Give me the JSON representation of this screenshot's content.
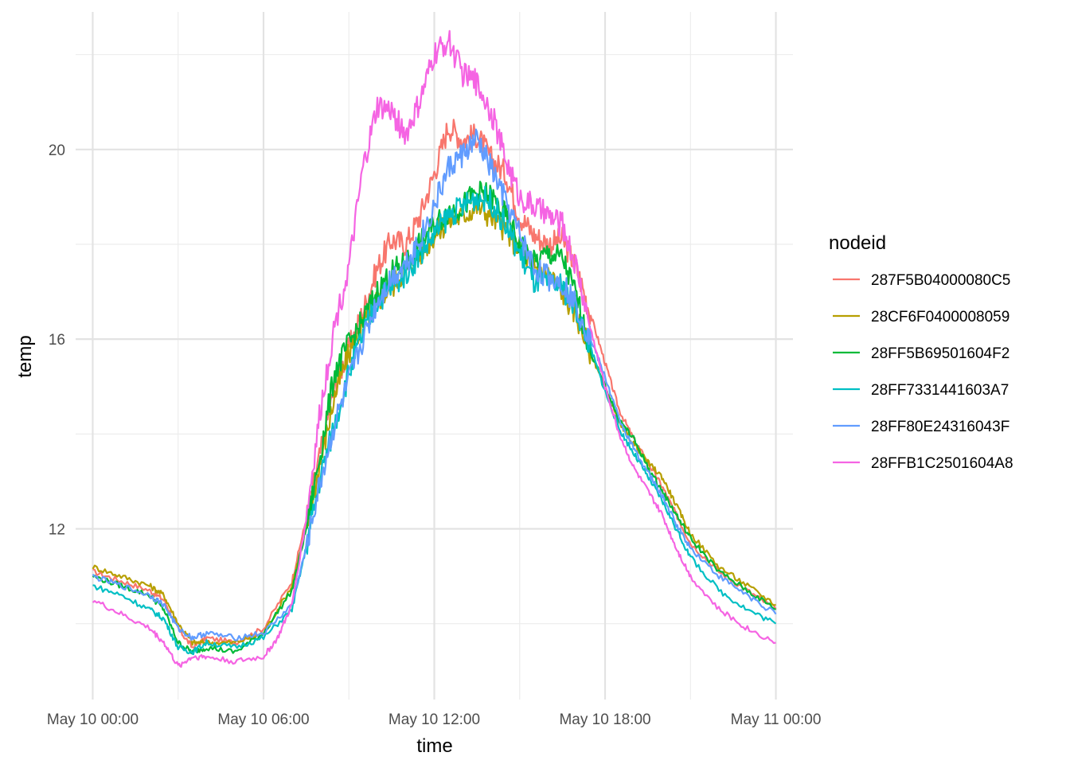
{
  "chart_data": {
    "type": "line",
    "xlabel": "time",
    "ylabel": "temp",
    "x_ticks": [
      "May 10 00:00",
      "May 10 06:00",
      "May 10 12:00",
      "May 10 18:00",
      "May 11 00:00"
    ],
    "x_range_hours": [
      -0.6,
      24.6
    ],
    "y_ticks": [
      12,
      16,
      20
    ],
    "ylim": [
      8.4,
      22.9
    ],
    "grid": true,
    "legend_title": "nodeid",
    "legend_position": "right",
    "series": [
      {
        "name": "287F5B04000080C5",
        "color": "#F8766D",
        "points": [
          [
            0,
            11.1
          ],
          [
            1,
            10.9
          ],
          [
            2,
            10.7
          ],
          [
            2.5,
            10.5
          ],
          [
            3,
            9.9
          ],
          [
            3.5,
            9.5
          ],
          [
            4,
            9.7
          ],
          [
            5,
            9.6
          ],
          [
            6,
            9.9
          ],
          [
            7,
            10.9
          ],
          [
            7.5,
            12.2
          ],
          [
            8,
            13.6
          ],
          [
            8.5,
            15.0
          ],
          [
            9,
            15.8
          ],
          [
            9.5,
            16.6
          ],
          [
            10,
            17.5
          ],
          [
            10.5,
            18.1
          ],
          [
            11,
            18.0
          ],
          [
            11.5,
            18.6
          ],
          [
            12,
            19.5
          ],
          [
            12.5,
            20.5
          ],
          [
            13,
            20.2
          ],
          [
            13.5,
            20.3
          ],
          [
            14,
            19.8
          ],
          [
            14.5,
            19.5
          ],
          [
            15,
            18.6
          ],
          [
            15.5,
            18.2
          ],
          [
            16,
            18.0
          ],
          [
            16.5,
            18.1
          ],
          [
            17,
            17.5
          ],
          [
            17.5,
            16.5
          ],
          [
            18,
            15.5
          ],
          [
            18.5,
            14.5
          ],
          [
            19,
            13.9
          ],
          [
            19.5,
            13.4
          ],
          [
            20,
            12.9
          ],
          [
            20.5,
            12.3
          ],
          [
            21,
            11.7
          ],
          [
            22,
            11.1
          ],
          [
            23,
            10.7
          ],
          [
            24,
            10.3
          ]
        ]
      },
      {
        "name": "28CF6F0400008059",
        "color": "#B79F00",
        "points": [
          [
            0,
            11.2
          ],
          [
            1,
            11.0
          ],
          [
            2,
            10.8
          ],
          [
            2.5,
            10.6
          ],
          [
            3,
            10.0
          ],
          [
            3.5,
            9.6
          ],
          [
            4,
            9.6
          ],
          [
            5,
            9.6
          ],
          [
            6,
            9.8
          ],
          [
            7,
            10.8
          ],
          [
            7.5,
            12.0
          ],
          [
            8,
            13.4
          ],
          [
            8.5,
            14.8
          ],
          [
            9,
            15.7
          ],
          [
            9.5,
            16.3
          ],
          [
            10,
            16.8
          ],
          [
            10.5,
            17.1
          ],
          [
            11,
            17.5
          ],
          [
            11.5,
            17.8
          ],
          [
            12,
            18.2
          ],
          [
            12.5,
            18.5
          ],
          [
            13,
            18.6
          ],
          [
            13.5,
            18.8
          ],
          [
            14,
            18.6
          ],
          [
            14.5,
            18.3
          ],
          [
            15,
            17.9
          ],
          [
            15.5,
            17.5
          ],
          [
            16,
            17.4
          ],
          [
            16.5,
            17.0
          ],
          [
            17,
            16.5
          ],
          [
            17.5,
            15.7
          ],
          [
            18,
            15.0
          ],
          [
            18.5,
            14.2
          ],
          [
            19,
            13.8
          ],
          [
            19.5,
            13.4
          ],
          [
            20,
            13.1
          ],
          [
            20.5,
            12.5
          ],
          [
            21,
            11.9
          ],
          [
            22,
            11.2
          ],
          [
            23,
            10.8
          ],
          [
            24,
            10.4
          ]
        ]
      },
      {
        "name": "28FF5B69501604F2",
        "color": "#00BA38",
        "points": [
          [
            0,
            11.0
          ],
          [
            1,
            10.8
          ],
          [
            2,
            10.6
          ],
          [
            2.5,
            10.3
          ],
          [
            3,
            9.6
          ],
          [
            3.5,
            9.4
          ],
          [
            4,
            9.5
          ],
          [
            5,
            9.4
          ],
          [
            6,
            9.8
          ],
          [
            7,
            10.7
          ],
          [
            7.5,
            12.0
          ],
          [
            8,
            13.6
          ],
          [
            8.5,
            15.3
          ],
          [
            9,
            15.9
          ],
          [
            9.5,
            16.4
          ],
          [
            10,
            17.0
          ],
          [
            10.5,
            17.4
          ],
          [
            11,
            17.6
          ],
          [
            11.5,
            18.0
          ],
          [
            12,
            18.4
          ],
          [
            12.5,
            18.7
          ],
          [
            13,
            18.8
          ],
          [
            13.5,
            19.1
          ],
          [
            14,
            19.0
          ],
          [
            14.5,
            18.6
          ],
          [
            15,
            18.0
          ],
          [
            15.5,
            17.6
          ],
          [
            16,
            17.8
          ],
          [
            16.5,
            17.7
          ],
          [
            17,
            16.9
          ],
          [
            17.5,
            15.7
          ],
          [
            18,
            15.0
          ],
          [
            18.5,
            14.3
          ],
          [
            19,
            13.9
          ],
          [
            19.5,
            13.3
          ],
          [
            20,
            12.8
          ],
          [
            20.5,
            12.3
          ],
          [
            21,
            11.8
          ],
          [
            22,
            11.1
          ],
          [
            23,
            10.7
          ],
          [
            24,
            10.3
          ]
        ]
      },
      {
        "name": "28FF7331441603A7",
        "color": "#00BFC4",
        "points": [
          [
            0,
            10.8
          ],
          [
            1,
            10.6
          ],
          [
            2,
            10.3
          ],
          [
            2.5,
            10.1
          ],
          [
            3,
            9.5
          ],
          [
            3.5,
            9.4
          ],
          [
            4,
            9.6
          ],
          [
            5,
            9.5
          ],
          [
            6,
            9.7
          ],
          [
            7,
            10.3
          ],
          [
            7.5,
            11.6
          ],
          [
            8,
            13.1
          ],
          [
            8.5,
            14.2
          ],
          [
            9,
            15.3
          ],
          [
            9.5,
            16.1
          ],
          [
            10,
            16.8
          ],
          [
            10.5,
            17.1
          ],
          [
            11,
            17.4
          ],
          [
            11.5,
            17.8
          ],
          [
            12,
            18.2
          ],
          [
            12.5,
            18.6
          ],
          [
            13,
            18.8
          ],
          [
            13.5,
            19.0
          ],
          [
            14,
            18.9
          ],
          [
            14.5,
            18.4
          ],
          [
            15,
            17.8
          ],
          [
            15.5,
            17.2
          ],
          [
            16,
            17.2
          ],
          [
            16.5,
            17.1
          ],
          [
            17,
            16.6
          ],
          [
            17.5,
            15.8
          ],
          [
            18,
            14.9
          ],
          [
            18.5,
            14.1
          ],
          [
            19,
            13.6
          ],
          [
            19.5,
            13.1
          ],
          [
            20,
            12.6
          ],
          [
            20.5,
            12.0
          ],
          [
            21,
            11.4
          ],
          [
            22,
            10.7
          ],
          [
            23,
            10.3
          ],
          [
            24,
            10.0
          ]
        ]
      },
      {
        "name": "28FF80E24316043F",
        "color": "#619CFF",
        "points": [
          [
            0,
            11.0
          ],
          [
            1,
            10.8
          ],
          [
            2,
            10.6
          ],
          [
            2.5,
            10.4
          ],
          [
            3,
            9.9
          ],
          [
            3.5,
            9.7
          ],
          [
            4,
            9.8
          ],
          [
            5,
            9.7
          ],
          [
            6,
            9.8
          ],
          [
            7,
            10.4
          ],
          [
            7.5,
            11.6
          ],
          [
            8,
            13.0
          ],
          [
            8.5,
            14.2
          ],
          [
            9,
            15.1
          ],
          [
            9.5,
            16.0
          ],
          [
            10,
            16.8
          ],
          [
            10.5,
            17.3
          ],
          [
            11,
            17.6
          ],
          [
            11.5,
            18.1
          ],
          [
            12,
            18.8
          ],
          [
            12.5,
            19.6
          ],
          [
            13,
            19.9
          ],
          [
            13.5,
            20.2
          ],
          [
            14,
            19.6
          ],
          [
            14.5,
            18.9
          ],
          [
            15,
            18.2
          ],
          [
            15.5,
            17.5
          ],
          [
            16,
            17.3
          ],
          [
            16.5,
            17.2
          ],
          [
            17,
            16.7
          ],
          [
            17.5,
            16.0
          ],
          [
            18,
            15.2
          ],
          [
            18.5,
            14.3
          ],
          [
            19,
            13.7
          ],
          [
            19.5,
            13.2
          ],
          [
            20,
            12.7
          ],
          [
            20.5,
            12.1
          ],
          [
            21,
            11.6
          ],
          [
            22,
            11.0
          ],
          [
            23,
            10.6
          ],
          [
            24,
            10.2
          ]
        ]
      },
      {
        "name": "28FFB1C2501604A8",
        "color": "#F564E3",
        "points": [
          [
            0,
            10.5
          ],
          [
            1,
            10.2
          ],
          [
            2,
            9.9
          ],
          [
            2.5,
            9.6
          ],
          [
            3,
            9.1
          ],
          [
            3.5,
            9.3
          ],
          [
            4,
            9.3
          ],
          [
            5,
            9.2
          ],
          [
            6,
            9.3
          ],
          [
            6.5,
            9.7
          ],
          [
            7,
            10.4
          ],
          [
            7.5,
            12.2
          ],
          [
            8,
            14.5
          ],
          [
            8.5,
            16.3
          ],
          [
            9,
            17.5
          ],
          [
            9.5,
            19.6
          ],
          [
            10,
            20.9
          ],
          [
            10.5,
            20.8
          ],
          [
            11,
            20.3
          ],
          [
            11.5,
            21.0
          ],
          [
            12,
            22.0
          ],
          [
            12.5,
            22.3
          ],
          [
            13,
            21.6
          ],
          [
            13.5,
            21.4
          ],
          [
            14,
            20.8
          ],
          [
            14.5,
            19.8
          ],
          [
            15,
            19.0
          ],
          [
            15.5,
            18.8
          ],
          [
            16,
            18.6
          ],
          [
            16.5,
            18.4
          ],
          [
            17,
            17.5
          ],
          [
            17.5,
            16.2
          ],
          [
            18,
            15.0
          ],
          [
            18.5,
            14.0
          ],
          [
            19,
            13.3
          ],
          [
            19.5,
            12.8
          ],
          [
            20,
            12.3
          ],
          [
            20.5,
            11.6
          ],
          [
            21,
            11.0
          ],
          [
            22,
            10.3
          ],
          [
            23,
            9.9
          ],
          [
            24,
            9.6
          ]
        ]
      }
    ]
  }
}
